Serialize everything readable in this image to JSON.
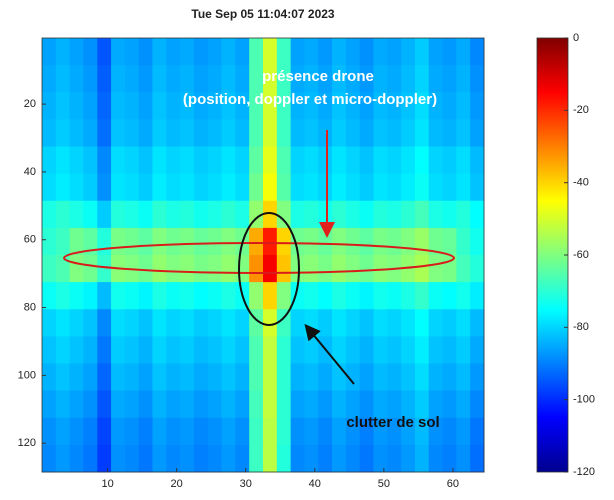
{
  "chart_data": {
    "type": "heatmap",
    "title": "Tue Sep 05 11:04:07 2023",
    "annotations": [
      "présence drone",
      "(position, doppler et micro-doppler)",
      "clutter de sol"
    ],
    "xlim": [
      0.5,
      64.5
    ],
    "ylim": [
      0.5,
      128.5
    ],
    "y_reversed": true,
    "xticks": [
      10,
      20,
      30,
      40,
      50,
      60
    ],
    "yticks": [
      20,
      40,
      60,
      80,
      100,
      120
    ],
    "colormap": "jet",
    "clim": [
      -120,
      0
    ],
    "colorbar_ticks": [
      0,
      -20,
      -40,
      -60,
      -80,
      -100,
      -120
    ],
    "values": [
      [
        -86,
        -84,
        -86,
        -88,
        -95,
        -85,
        -86,
        -88,
        -84,
        -86,
        -85,
        -87,
        -86,
        -84,
        -86,
        -66,
        -50,
        -68,
        -86,
        -85,
        -87,
        -84,
        -86,
        -88,
        -85,
        -86,
        -84,
        -81,
        -86,
        -87,
        -85,
        -89
      ],
      [
        -85,
        -83,
        -85,
        -87,
        -94,
        -84,
        -85,
        -87,
        -83,
        -85,
        -84,
        -86,
        -85,
        -83,
        -85,
        -66,
        -50,
        -68,
        -85,
        -84,
        -86,
        -83,
        -85,
        -87,
        -84,
        -85,
        -83,
        -80,
        -85,
        -86,
        -84,
        -88
      ],
      [
        -84,
        -82,
        -84,
        -86,
        -93,
        -83,
        -84,
        -86,
        -82,
        -84,
        -83,
        -85,
        -84,
        -82,
        -84,
        -66,
        -50,
        -68,
        -84,
        -83,
        -85,
        -82,
        -84,
        -86,
        -83,
        -84,
        -82,
        -79,
        -84,
        -85,
        -83,
        -87
      ],
      [
        -83,
        -81,
        -83,
        -85,
        -92,
        -82,
        -83,
        -85,
        -81,
        -83,
        -82,
        -84,
        -83,
        -81,
        -83,
        -66,
        -50,
        -68,
        -83,
        -82,
        -84,
        -81,
        -83,
        -85,
        -82,
        -83,
        -81,
        -78,
        -83,
        -84,
        -82,
        -86
      ],
      [
        -80,
        -78,
        -80,
        -82,
        -89,
        -79,
        -80,
        -82,
        -78,
        -80,
        -79,
        -81,
        -80,
        -78,
        -80,
        -64,
        -48,
        -66,
        -80,
        -79,
        -81,
        -78,
        -80,
        -82,
        -79,
        -80,
        -78,
        -75,
        -80,
        -81,
        -79,
        -83
      ],
      [
        -79,
        -77,
        -79,
        -81,
        -88,
        -78,
        -79,
        -81,
        -77,
        -79,
        -78,
        -80,
        -79,
        -77,
        -79,
        -62,
        -46,
        -65,
        -79,
        -78,
        -80,
        -77,
        -79,
        -81,
        -78,
        -79,
        -77,
        -74,
        -79,
        -80,
        -78,
        -82
      ],
      [
        -72,
        -70,
        -72,
        -74,
        -81,
        -71,
        -72,
        -74,
        -70,
        -72,
        -71,
        -73,
        -72,
        -70,
        -72,
        -58,
        -40,
        -60,
        -72,
        -71,
        -73,
        -70,
        -72,
        -74,
        -71,
        -72,
        -70,
        -67,
        -72,
        -73,
        -71,
        -75
      ],
      [
        -70,
        -68,
        -62,
        -64,
        -71,
        -61,
        -62,
        -64,
        -60,
        -62,
        -61,
        -63,
        -62,
        -60,
        -62,
        -35,
        -18,
        -40,
        -62,
        -61,
        -63,
        -60,
        -62,
        -64,
        -61,
        -62,
        -60,
        -57,
        -62,
        -63,
        -69,
        -73
      ],
      [
        -68,
        -66,
        -60,
        -62,
        -69,
        -59,
        -60,
        -62,
        -58,
        -60,
        -59,
        -61,
        -60,
        -58,
        -60,
        -32,
        -14,
        -38,
        -60,
        -59,
        -61,
        -58,
        -60,
        -62,
        -59,
        -60,
        -58,
        -55,
        -60,
        -61,
        -67,
        -71
      ],
      [
        -74,
        -72,
        -74,
        -76,
        -83,
        -73,
        -74,
        -76,
        -72,
        -74,
        -73,
        -75,
        -74,
        -72,
        -74,
        -58,
        -40,
        -60,
        -74,
        -73,
        -75,
        -72,
        -74,
        -76,
        -73,
        -74,
        -72,
        -69,
        -74,
        -75,
        -73,
        -77
      ],
      [
        -80,
        -78,
        -80,
        -82,
        -89,
        -79,
        -80,
        -82,
        -78,
        -80,
        -79,
        -81,
        -80,
        -78,
        -80,
        -64,
        -50,
        -68,
        -80,
        -79,
        -81,
        -78,
        -80,
        -82,
        -79,
        -80,
        -78,
        -75,
        -80,
        -81,
        -79,
        -83
      ],
      [
        -82,
        -80,
        -82,
        -84,
        -91,
        -81,
        -82,
        -84,
        -80,
        -82,
        -81,
        -83,
        -82,
        -80,
        -82,
        -66,
        -52,
        -70,
        -82,
        -81,
        -83,
        -80,
        -82,
        -84,
        -81,
        -82,
        -80,
        -77,
        -82,
        -83,
        -81,
        -85
      ],
      [
        -84,
        -82,
        -84,
        -86,
        -93,
        -83,
        -84,
        -86,
        -82,
        -84,
        -83,
        -85,
        -84,
        -82,
        -84,
        -66,
        -52,
        -70,
        -84,
        -83,
        -85,
        -82,
        -84,
        -86,
        -83,
        -84,
        -82,
        -79,
        -84,
        -85,
        -83,
        -87
      ],
      [
        -86,
        -84,
        -86,
        -88,
        -95,
        -85,
        -86,
        -88,
        -84,
        -86,
        -85,
        -87,
        -86,
        -84,
        -86,
        -67,
        -52,
        -70,
        -86,
        -85,
        -87,
        -84,
        -86,
        -88,
        -85,
        -86,
        -84,
        -81,
        -86,
        -87,
        -85,
        -89
      ],
      [
        -88,
        -86,
        -88,
        -90,
        -97,
        -87,
        -88,
        -90,
        -86,
        -88,
        -87,
        -89,
        -88,
        -86,
        -88,
        -68,
        -53,
        -70,
        -88,
        -87,
        -89,
        -86,
        -88,
        -90,
        -87,
        -88,
        -86,
        -83,
        -88,
        -89,
        -87,
        -91
      ],
      [
        -89,
        -87,
        -89,
        -91,
        -98,
        -88,
        -89,
        -91,
        -87,
        -89,
        -88,
        -90,
        -89,
        -87,
        -89,
        -68,
        -53,
        -71,
        -89,
        -88,
        -90,
        -87,
        -89,
        -91,
        -88,
        -89,
        -87,
        -84,
        -89,
        -90,
        -88,
        -92
      ]
    ]
  }
}
